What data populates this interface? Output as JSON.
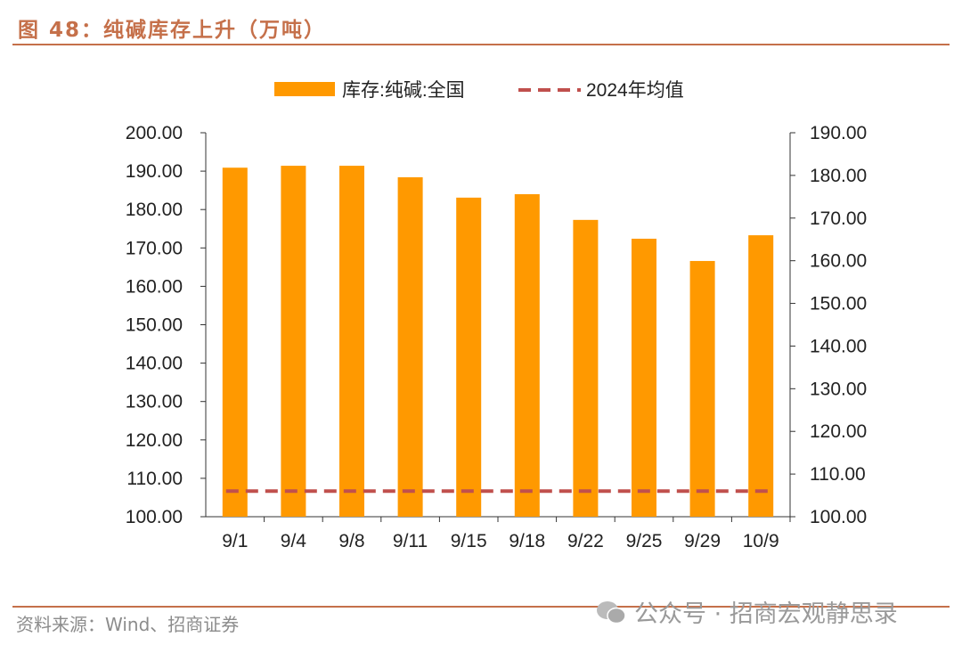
{
  "header": {
    "title": "图 48：纯碱库存上升（万吨）"
  },
  "footer": {
    "source": "资料来源：Wind、招商证券",
    "watermark": "公众号 · 招商宏观静思录"
  },
  "colors": {
    "bar": "#ff9900",
    "avg_line": "#c0504d",
    "accent": "#c5704a"
  },
  "chart_data": {
    "type": "bar",
    "title": "纯碱库存上升（万吨）",
    "categories": [
      "9/1",
      "9/4",
      "9/8",
      "9/11",
      "9/15",
      "9/18",
      "9/22",
      "9/25",
      "9/29",
      "10/9"
    ],
    "series": [
      {
        "name": "库存:纯碱:全国",
        "type": "bar",
        "axis": "left",
        "values": [
          190.9,
          191.4,
          191.4,
          188.4,
          183.1,
          184.0,
          177.3,
          172.4,
          166.6,
          173.3
        ]
      },
      {
        "name": "2024年均值",
        "type": "line-dashed",
        "axis": "right",
        "value": 106.0
      }
    ],
    "left_axis": {
      "ylim": [
        100,
        200
      ],
      "ticks": [
        "100.00",
        "110.00",
        "120.00",
        "130.00",
        "140.00",
        "150.00",
        "160.00",
        "170.00",
        "180.00",
        "190.00",
        "200.00"
      ]
    },
    "right_axis": {
      "ylim": [
        100,
        190
      ],
      "ticks": [
        "100.00",
        "110.00",
        "120.00",
        "130.00",
        "140.00",
        "150.00",
        "160.00",
        "170.00",
        "180.00",
        "190.00"
      ]
    },
    "legend": {
      "placement": "top",
      "entries": [
        "库存:纯碱:全国",
        "2024年均值"
      ]
    },
    "grid": false
  }
}
